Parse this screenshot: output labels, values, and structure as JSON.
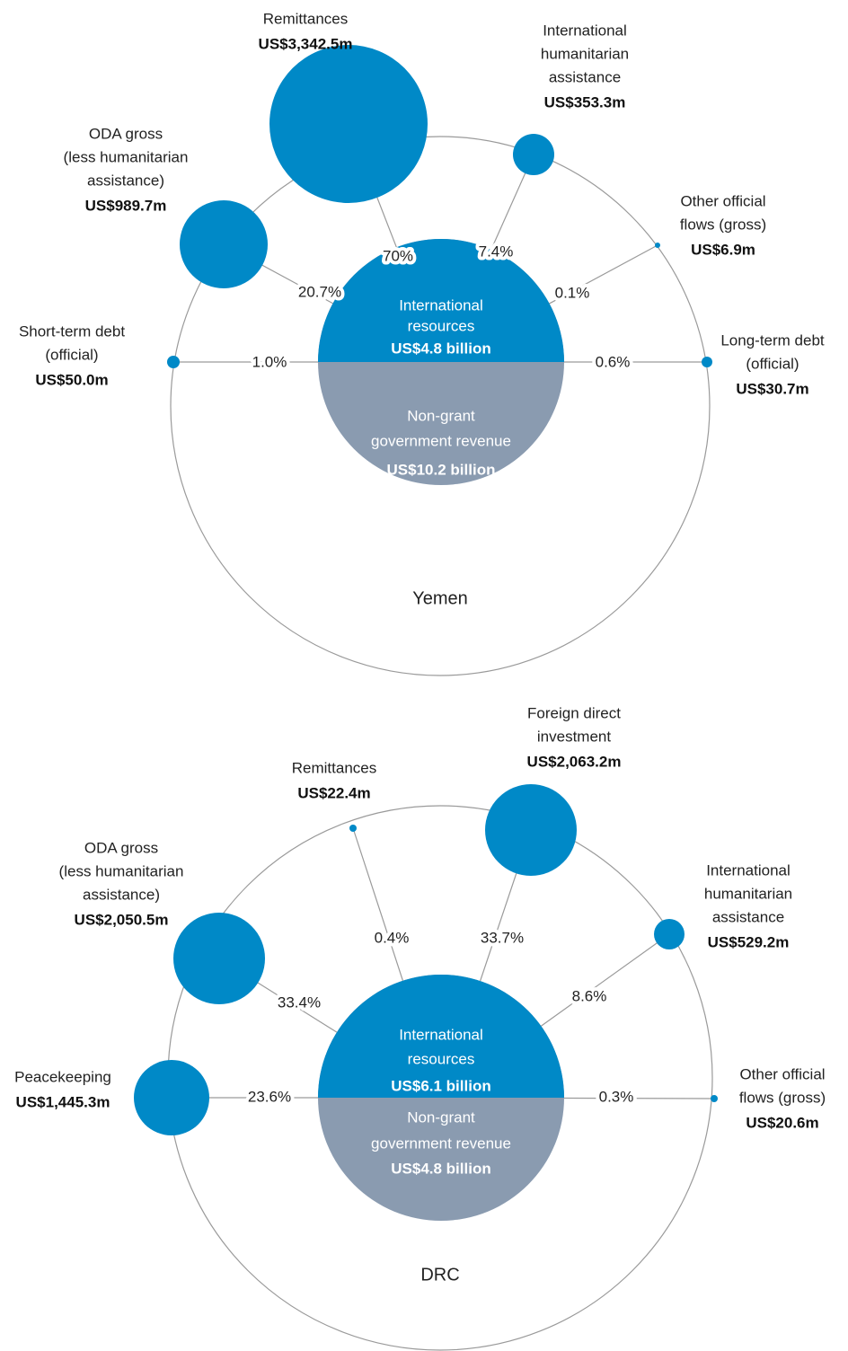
{
  "diagrams": [
    {
      "country": "Yemen",
      "center": {
        "top_label": [
          "International",
          "resources"
        ],
        "top_value": "US$4.8 billion",
        "bottom_label": [
          "Non-grant",
          "government revenue"
        ],
        "bottom_value": "US$10.2 billion"
      },
      "flows": [
        {
          "label": [
            "Remittances"
          ],
          "value": "US$3,342.5m",
          "share": "70%"
        },
        {
          "label": [
            "International",
            "humanitarian",
            "assistance"
          ],
          "value": "US$353.3m",
          "share": "7.4%"
        },
        {
          "label": [
            "ODA gross",
            "(less humanitarian",
            "assistance)"
          ],
          "value": "US$989.7m",
          "share": "20.7%"
        },
        {
          "label": [
            "Other official",
            "flows (gross)"
          ],
          "value": "US$6.9m",
          "share": "0.1%"
        },
        {
          "label": [
            "Short-term debt",
            "(official)"
          ],
          "value": "US$50.0m",
          "share": "1.0%"
        },
        {
          "label": [
            "Long-term debt",
            "(official)"
          ],
          "value": "US$30.7m",
          "share": "0.6%"
        }
      ]
    },
    {
      "country": "DRC",
      "center": {
        "top_label": [
          "International",
          "resources"
        ],
        "top_value": "US$6.1 billion",
        "bottom_label": [
          "Non-grant",
          "government revenue"
        ],
        "bottom_value": "US$4.8 billion"
      },
      "flows": [
        {
          "label": [
            "Remittances"
          ],
          "value": "US$22.4m",
          "share": "0.4%"
        },
        {
          "label": [
            "Foreign direct",
            "investment"
          ],
          "value": "US$2,063.2m",
          "share": "33.7%"
        },
        {
          "label": [
            "ODA gross",
            "(less humanitarian",
            "assistance)"
          ],
          "value": "US$2,050.5m",
          "share": "33.4%"
        },
        {
          "label": [
            "International",
            "humanitarian",
            "assistance"
          ],
          "value": "US$529.2m",
          "share": "8.6%"
        },
        {
          "label": [
            "Peacekeeping"
          ],
          "value": "US$1,445.3m",
          "share": "23.6%"
        },
        {
          "label": [
            "Other official",
            "flows (gross)"
          ],
          "value": "US$20.6m",
          "share": "0.3%"
        }
      ]
    }
  ]
}
